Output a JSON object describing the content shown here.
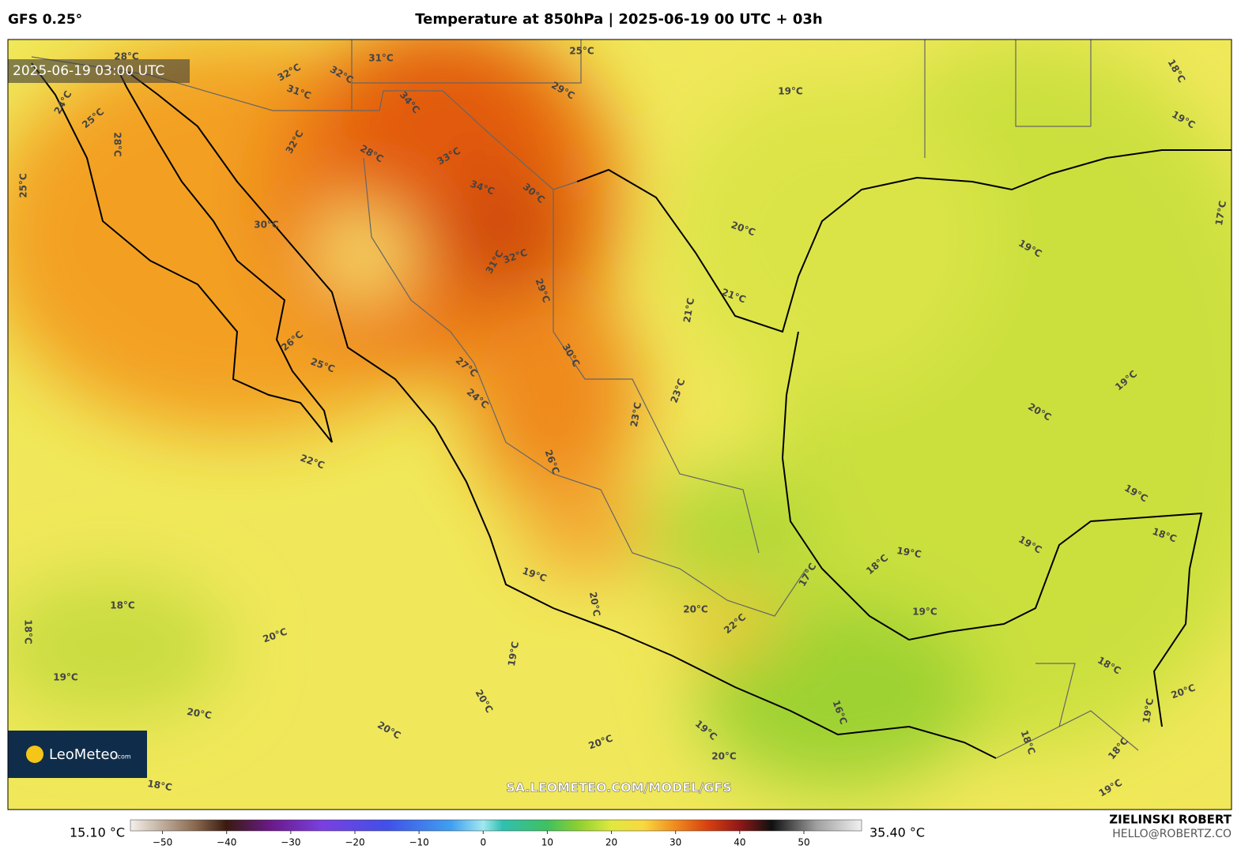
{
  "header": {
    "model": "GFS 0.25°",
    "title": "Temperature at 850hPa | 2025-06-19 00 UTC + 03h"
  },
  "map": {
    "timestamp": "2025-06-19 03:00 UTC",
    "url": "SA.LEOMETEO.COM/MODEL/GFS",
    "contour_labels": [
      "28°C",
      "32°C",
      "31°C",
      "32°C",
      "31°C",
      "34°C",
      "24°C",
      "25°C",
      "28°C",
      "32°C",
      "28°C",
      "33°C",
      "34°C",
      "30°C",
      "25°C",
      "30°C",
      "25°C",
      "29°C",
      "19°C",
      "18°C",
      "19°C",
      "20°C",
      "19°C",
      "17°C",
      "21°C",
      "21°C",
      "32°C",
      "31°C",
      "29°C",
      "30°C",
      "26°C",
      "25°C",
      "27°C",
      "24°C",
      "23°C",
      "23°C",
      "19°C",
      "20°C",
      "22°C",
      "26°C",
      "19°C",
      "18°C",
      "19°C",
      "19°C",
      "18°C",
      "17°C",
      "19°C",
      "20°C",
      "20°C",
      "22°C",
      "18°C",
      "18°C",
      "20°C",
      "19°C",
      "18°C",
      "19°C",
      "19°C",
      "20°C",
      "16°C",
      "20°C",
      "19°C",
      "20°C",
      "20°C",
      "19°C",
      "20°C",
      "18°C",
      "18°C",
      "20°C",
      "18°C",
      "19°C"
    ]
  },
  "logo": {
    "name": "LeoMeteo",
    "suffix": ".com"
  },
  "colorbar": {
    "lim": [
      -55,
      59
    ],
    "min_label": "15.10 °C",
    "max_label": "35.40 °C",
    "ticks": [
      {
        "value": -50,
        "label": "−50"
      },
      {
        "value": -40,
        "label": "−40"
      },
      {
        "value": -30,
        "label": "−30"
      },
      {
        "value": -20,
        "label": "−20"
      },
      {
        "value": -10,
        "label": "−10"
      },
      0,
      10,
      20,
      30,
      40,
      50
    ],
    "stops": [
      {
        "value": -55,
        "color": "#f4f0ea"
      },
      {
        "value": -45,
        "color": "#8a6a50"
      },
      {
        "value": -40,
        "color": "#3a1a10"
      },
      {
        "value": -33,
        "color": "#6a1a8a"
      },
      {
        "value": -25,
        "color": "#7a40e0"
      },
      {
        "value": -15,
        "color": "#4050e8"
      },
      {
        "value": -5,
        "color": "#40a0f0"
      },
      {
        "value": 0,
        "color": "#a0e8f0"
      },
      {
        "value": 3,
        "color": "#30c0b0"
      },
      {
        "value": 10,
        "color": "#40c060"
      },
      {
        "value": 15,
        "color": "#90d030"
      },
      {
        "value": 20,
        "color": "#e0e840"
      },
      {
        "value": 25,
        "color": "#f8d840"
      },
      {
        "value": 30,
        "color": "#f08a1e"
      },
      {
        "value": 35,
        "color": "#d84010"
      },
      {
        "value": 40,
        "color": "#901818"
      },
      {
        "value": 45,
        "color": "#101010"
      },
      {
        "value": 52,
        "color": "#a0a0a0"
      },
      {
        "value": 59,
        "color": "#f0f0f0"
      }
    ]
  },
  "credit": {
    "name": "ZIELINSKI ROBERT",
    "email": "HELLO@ROBERTZ.CO"
  }
}
